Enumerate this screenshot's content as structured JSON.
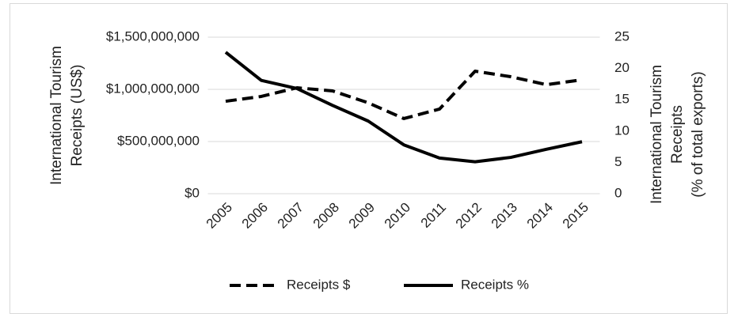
{
  "chart_data": {
    "type": "line",
    "y_label": [
      "International Tourism",
      "Receipts (US$)"
    ],
    "y2_label": [
      "International Tourism",
      "Receipts",
      "(% of total exports)"
    ],
    "categories": [
      "2005",
      "2006",
      "2007",
      "2008",
      "2009",
      "2010",
      "2011",
      "2012",
      "2013",
      "2014",
      "2015"
    ],
    "series": [
      {
        "name": "Receipts $",
        "color": "#000000",
        "dash": "dashed",
        "values": [
          886000000,
          932000000,
          1015000000,
          985000000,
          871000000,
          720000000,
          811000000,
          1174000000,
          1121000000,
          1045000000,
          1091000000
        ]
      },
      {
        "name": "Receipts %",
        "color": "#000000",
        "dash": "solid",
        "axis": "y2",
        "values": [
          22.6,
          18.1,
          16.8,
          14.1,
          11.6,
          7.8,
          5.7,
          5.1,
          5.8,
          7.1,
          8.3
        ]
      }
    ],
    "ylim": [
      0,
      1500000000
    ],
    "yticks": [
      {
        "value": 0,
        "label": "$0"
      },
      {
        "value": 500000000,
        "label": "$500,000,000"
      },
      {
        "value": 1000000000,
        "label": "$1,000,000,000"
      },
      {
        "value": 1500000000,
        "label": "$1,500,000,000"
      }
    ],
    "y2lim": [
      0,
      25
    ],
    "y2ticks": [
      0,
      5,
      10,
      15,
      20,
      25
    ],
    "grid": true,
    "legend": "bottom"
  }
}
